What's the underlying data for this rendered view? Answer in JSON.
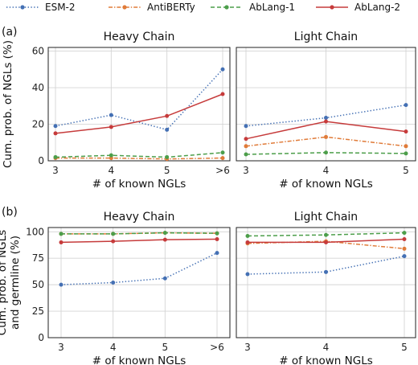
{
  "legend": [
    {
      "name": "ESM-2",
      "color": "#4470b4",
      "dash": "dotted"
    },
    {
      "name": "AntiBERTy",
      "color": "#e07b39",
      "dash": "dashdot"
    },
    {
      "name": "AbLang-1",
      "color": "#4c9e4a",
      "dash": "dashed"
    },
    {
      "name": "AbLang-2",
      "color": "#c63b3b",
      "dash": "solid"
    }
  ],
  "panel_labels": [
    "(a)",
    "(b)"
  ],
  "chart_data": [
    {
      "type": "line",
      "panel": "(a)",
      "title": "Heavy Chain",
      "xlabel": "# of known NGLs",
      "ylabel": "Cum. prob. of NGLs (%)",
      "categories": [
        "3",
        "4",
        "5",
        ">6"
      ],
      "ylim": [
        0,
        62
      ],
      "yticks": [
        0,
        20,
        40,
        60
      ],
      "grid": true,
      "series": [
        {
          "name": "ESM-2",
          "values": [
            19,
            25,
            17,
            50
          ]
        },
        {
          "name": "AntiBERTy",
          "values": [
            1.5,
            1.5,
            1,
            1.5
          ]
        },
        {
          "name": "AbLang-1",
          "values": [
            2,
            3,
            2,
            4.5
          ]
        },
        {
          "name": "AbLang-2",
          "values": [
            15,
            18.5,
            24.5,
            36.5
          ]
        }
      ]
    },
    {
      "type": "line",
      "panel": "(a)",
      "title": "Light Chain",
      "xlabel": "# of known NGLs",
      "ylabel": "",
      "categories": [
        "3",
        "4",
        "5"
      ],
      "ylim": [
        0,
        62
      ],
      "yticks": [
        0,
        20,
        40,
        60
      ],
      "grid": true,
      "series": [
        {
          "name": "ESM-2",
          "values": [
            19,
            23.5,
            30.5
          ]
        },
        {
          "name": "AntiBERTy",
          "values": [
            8,
            13,
            8
          ]
        },
        {
          "name": "AbLang-1",
          "values": [
            3.5,
            4.5,
            4
          ]
        },
        {
          "name": "AbLang-2",
          "values": [
            12,
            21.5,
            16
          ]
        }
      ]
    },
    {
      "type": "line",
      "panel": "(b)",
      "title": "Heavy Chain",
      "xlabel": "# of known NGLs",
      "ylabel": "Cum. prob. of NGLs\nand germline (%)",
      "categories": [
        "3",
        "4",
        "5",
        ">6"
      ],
      "ylim": [
        0,
        104
      ],
      "yticks": [
        0,
        25,
        50,
        75,
        100
      ],
      "grid": true,
      "series": [
        {
          "name": "ESM-2",
          "values": [
            50,
            52,
            56,
            80
          ]
        },
        {
          "name": "AntiBERTy",
          "values": [
            98,
            98,
            99,
            98.5
          ]
        },
        {
          "name": "AbLang-1",
          "values": [
            98,
            98,
            99,
            98.5
          ]
        },
        {
          "name": "AbLang-2",
          "values": [
            90,
            91,
            92.5,
            93
          ]
        }
      ]
    },
    {
      "type": "line",
      "panel": "(b)",
      "title": "Light Chain",
      "xlabel": "# of known NGLs",
      "ylabel": "",
      "categories": [
        "3",
        "4",
        "5"
      ],
      "ylim": [
        0,
        104
      ],
      "yticks": [
        0,
        25,
        50,
        75,
        100
      ],
      "grid": true,
      "series": [
        {
          "name": "ESM-2",
          "values": [
            60,
            62,
            77
          ]
        },
        {
          "name": "AntiBERTy",
          "values": [
            89,
            91,
            84
          ]
        },
        {
          "name": "AbLang-1",
          "values": [
            96,
            97,
            99
          ]
        },
        {
          "name": "AbLang-2",
          "values": [
            90,
            90,
            93
          ]
        }
      ]
    }
  ]
}
